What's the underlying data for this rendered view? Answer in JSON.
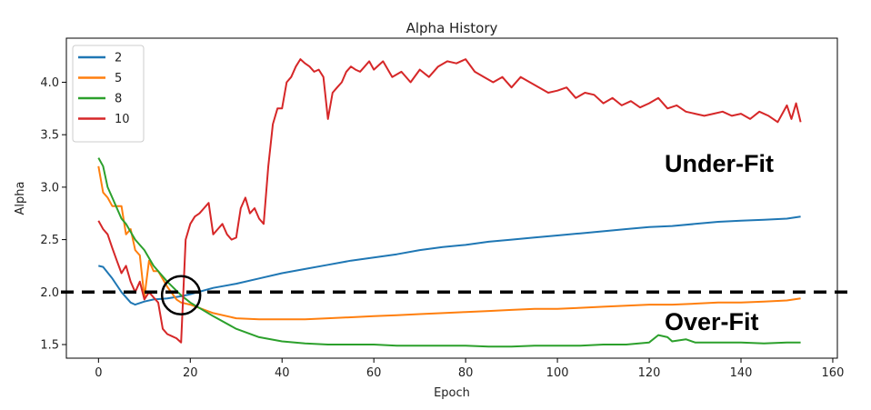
{
  "chart_data": {
    "type": "line",
    "title": "Alpha History",
    "xlabel": "Epoch",
    "ylabel": "Alpha",
    "xlim": [
      -7,
      161
    ],
    "ylim": [
      1.37,
      4.42
    ],
    "xticks": [
      0,
      20,
      40,
      60,
      80,
      100,
      120,
      140,
      160
    ],
    "yticks": [
      1.5,
      2.0,
      2.5,
      3.0,
      3.5,
      4.0
    ],
    "legend_position": "top-left",
    "grid": false,
    "series": [
      {
        "name": "2",
        "color": "#1f77b4",
        "x": [
          0,
          1,
          3,
          5,
          7,
          8,
          10,
          12,
          15,
          18,
          20,
          25,
          30,
          35,
          40,
          45,
          50,
          55,
          60,
          65,
          70,
          75,
          80,
          85,
          90,
          95,
          100,
          105,
          110,
          115,
          120,
          125,
          130,
          135,
          140,
          145,
          150,
          153
        ],
        "y": [
          2.25,
          2.24,
          2.13,
          2.0,
          1.9,
          1.88,
          1.91,
          1.93,
          1.94,
          1.96,
          1.98,
          2.04,
          2.08,
          2.13,
          2.18,
          2.22,
          2.26,
          2.3,
          2.33,
          2.36,
          2.4,
          2.43,
          2.45,
          2.48,
          2.5,
          2.52,
          2.54,
          2.56,
          2.58,
          2.6,
          2.62,
          2.63,
          2.65,
          2.67,
          2.68,
          2.69,
          2.7,
          2.72
        ]
      },
      {
        "name": "5",
        "color": "#ff7f0e",
        "x": [
          0,
          1,
          2,
          3,
          5,
          6,
          7,
          8,
          9,
          10,
          11,
          12,
          13,
          15,
          17,
          18,
          20,
          25,
          30,
          35,
          40,
          45,
          50,
          55,
          60,
          65,
          70,
          75,
          80,
          85,
          90,
          95,
          100,
          105,
          110,
          115,
          120,
          125,
          130,
          135,
          140,
          145,
          150,
          153
        ],
        "y": [
          3.2,
          2.95,
          2.9,
          2.82,
          2.82,
          2.55,
          2.6,
          2.4,
          2.35,
          1.95,
          2.3,
          2.2,
          2.2,
          2.05,
          1.93,
          1.9,
          1.88,
          1.8,
          1.75,
          1.74,
          1.74,
          1.74,
          1.75,
          1.76,
          1.77,
          1.78,
          1.79,
          1.8,
          1.81,
          1.82,
          1.83,
          1.84,
          1.84,
          1.85,
          1.86,
          1.87,
          1.88,
          1.88,
          1.89,
          1.9,
          1.9,
          1.91,
          1.92,
          1.94
        ]
      },
      {
        "name": "8",
        "color": "#2ca02c",
        "x": [
          0,
          1,
          2,
          3,
          5,
          6,
          8,
          10,
          12,
          15,
          18,
          20,
          25,
          30,
          35,
          40,
          45,
          50,
          55,
          60,
          65,
          70,
          75,
          80,
          85,
          90,
          95,
          100,
          105,
          110,
          115,
          120,
          122,
          124,
          125,
          128,
          130,
          135,
          140,
          145,
          150,
          153
        ],
        "y": [
          3.28,
          3.2,
          3.0,
          2.9,
          2.7,
          2.65,
          2.5,
          2.4,
          2.25,
          2.1,
          1.97,
          1.9,
          1.77,
          1.65,
          1.57,
          1.53,
          1.51,
          1.5,
          1.5,
          1.5,
          1.49,
          1.49,
          1.49,
          1.49,
          1.48,
          1.48,
          1.49,
          1.49,
          1.49,
          1.5,
          1.5,
          1.52,
          1.59,
          1.57,
          1.53,
          1.55,
          1.52,
          1.52,
          1.52,
          1.51,
          1.52,
          1.52
        ]
      },
      {
        "name": "10",
        "color": "#d62728",
        "x": [
          0,
          1,
          2,
          3,
          4,
          5,
          6,
          7,
          8,
          9,
          10,
          11,
          12,
          13,
          14,
          15,
          16,
          17,
          18,
          19,
          20,
          21,
          22,
          23,
          24,
          25,
          26,
          27,
          28,
          29,
          30,
          31,
          32,
          33,
          34,
          35,
          36,
          37,
          38,
          39,
          40,
          41,
          42,
          43,
          44,
          45,
          46,
          47,
          48,
          49,
          50,
          51,
          52,
          53,
          54,
          55,
          56,
          57,
          58,
          59,
          60,
          62,
          64,
          66,
          68,
          70,
          72,
          74,
          76,
          78,
          80,
          82,
          84,
          86,
          88,
          90,
          92,
          94,
          96,
          98,
          100,
          102,
          104,
          106,
          108,
          110,
          112,
          114,
          116,
          118,
          120,
          122,
          124,
          126,
          128,
          130,
          132,
          134,
          136,
          138,
          140,
          142,
          144,
          146,
          148,
          150,
          151,
          152,
          153
        ],
        "y": [
          2.68,
          2.6,
          2.55,
          2.42,
          2.3,
          2.18,
          2.25,
          2.1,
          2.0,
          2.1,
          1.93,
          2.0,
          1.95,
          1.9,
          1.65,
          1.6,
          1.58,
          1.56,
          1.52,
          2.5,
          2.65,
          2.72,
          2.75,
          2.8,
          2.85,
          2.55,
          2.6,
          2.65,
          2.55,
          2.5,
          2.52,
          2.8,
          2.9,
          2.75,
          2.8,
          2.7,
          2.65,
          3.2,
          3.6,
          3.75,
          3.75,
          4.0,
          4.05,
          4.15,
          4.22,
          4.18,
          4.15,
          4.1,
          4.12,
          4.05,
          3.65,
          3.9,
          3.95,
          4.0,
          4.1,
          4.15,
          4.12,
          4.1,
          4.15,
          4.2,
          4.12,
          4.2,
          4.05,
          4.1,
          4.0,
          4.12,
          4.05,
          4.15,
          4.2,
          4.18,
          4.22,
          4.1,
          4.05,
          4.0,
          4.05,
          3.95,
          4.05,
          4.0,
          3.95,
          3.9,
          3.92,
          3.95,
          3.85,
          3.9,
          3.88,
          3.8,
          3.85,
          3.78,
          3.82,
          3.76,
          3.8,
          3.85,
          3.75,
          3.78,
          3.72,
          3.7,
          3.68,
          3.7,
          3.72,
          3.68,
          3.7,
          3.65,
          3.72,
          3.68,
          3.62,
          3.78,
          3.65,
          3.8,
          3.62
        ]
      }
    ],
    "threshold": {
      "y": 2.0,
      "style": "dashed",
      "color": "#000000"
    },
    "marker": {
      "x": 18,
      "y": 1.97,
      "shape": "circle",
      "color": "#000000"
    },
    "annotations": [
      "Under-Fit",
      "Over-Fit"
    ]
  }
}
